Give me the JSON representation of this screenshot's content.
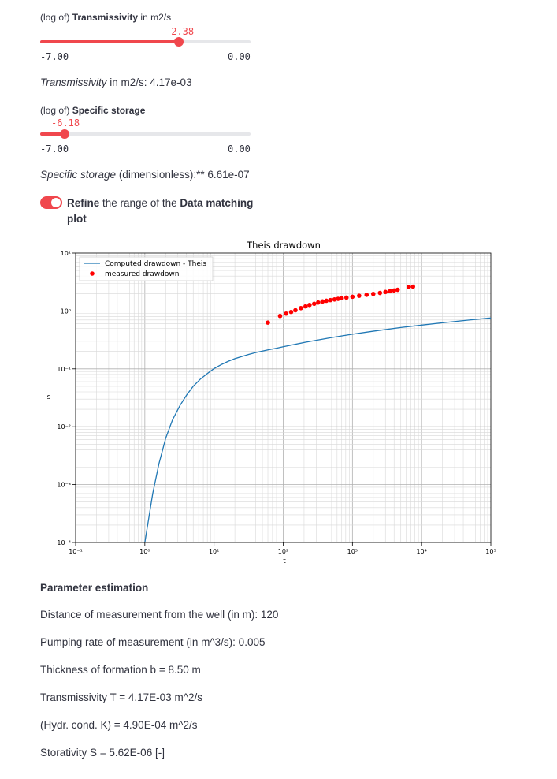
{
  "slider_transmissivity": {
    "label_prefix": "(log of) ",
    "label_bold": "Transmissivity",
    "label_suffix": " in m2/s",
    "value": "-2.38",
    "value_num": -2.38,
    "min": "-7.00",
    "max": "0.00",
    "min_num": -7.0,
    "max_num": 0.0
  },
  "transmissivity_text": {
    "italic": "Transmissivity",
    "rest": " in m2/s: 4.17e-03"
  },
  "slider_storage": {
    "label_prefix": "(log of) ",
    "label_bold": "Specific storage",
    "value": "-6.18",
    "value_num": -6.18,
    "min": "-7.00",
    "max": "0.00",
    "min_num": -7.0,
    "max_num": 0.0
  },
  "storage_text": {
    "italic": "Specific storage",
    "rest": " (dimensionless):** 6.61e-07"
  },
  "toggle": {
    "bold1": "Refine",
    "mid": " the range of the ",
    "bold2": "Data matching",
    "line2": "plot",
    "checked": true
  },
  "chart_data": {
    "type": "line",
    "title": "Theis drawdown",
    "xlabel": "t",
    "ylabel": "s",
    "xscale": "log",
    "yscale": "log",
    "xlim": [
      0.1,
      100000
    ],
    "ylim": [
      0.0001,
      10
    ],
    "grid": true,
    "legend_position": "top-left",
    "xticks": [
      "10⁻¹",
      "10⁰",
      "10¹",
      "10²",
      "10³",
      "10⁴",
      "10⁵"
    ],
    "yticks": [
      "10⁻⁴",
      "10⁻³",
      "10⁻²",
      "10⁻¹",
      "10⁰",
      "10¹"
    ],
    "series": [
      {
        "name": "Computed drawdown - Theis",
        "color": "#1f77b4",
        "style": "line",
        "x": [
          1.0,
          1.3,
          1.6,
          2.0,
          2.5,
          3.2,
          4.0,
          5.0,
          6.3,
          8.0,
          10,
          13,
          16,
          20,
          25,
          32,
          40,
          50,
          63,
          80,
          100,
          200,
          500,
          1000,
          2000,
          5000,
          10000,
          20000,
          50000,
          100000
        ],
        "y": [
          0.0001,
          0.0007,
          0.0023,
          0.0063,
          0.013,
          0.023,
          0.035,
          0.05,
          0.066,
          0.083,
          0.101,
          0.12,
          0.135,
          0.15,
          0.163,
          0.178,
          0.191,
          0.203,
          0.215,
          0.227,
          0.241,
          0.285,
          0.347,
          0.397,
          0.447,
          0.518,
          0.57,
          0.625,
          0.7,
          0.756
        ]
      },
      {
        "name": "measured drawdown",
        "color": "#ff0000",
        "style": "scatter",
        "x": [
          60,
          90,
          110,
          130,
          150,
          180,
          210,
          240,
          280,
          320,
          370,
          420,
          480,
          550,
          620,
          700,
          820,
          1000,
          1250,
          1600,
          2000,
          2500,
          3000,
          3500,
          4000,
          4500,
          6500,
          7500
        ],
        "y": [
          0.63,
          0.82,
          0.9,
          0.96,
          1.03,
          1.12,
          1.2,
          1.27,
          1.33,
          1.4,
          1.46,
          1.5,
          1.54,
          1.58,
          1.62,
          1.66,
          1.7,
          1.76,
          1.83,
          1.9,
          1.97,
          2.05,
          2.13,
          2.2,
          2.26,
          2.32,
          2.6,
          2.63
        ]
      }
    ]
  },
  "parameter_estimation": {
    "heading": "Parameter estimation",
    "lines": [
      "Distance of measurement from the well (in m): 120",
      "Pumping rate of measurement (in m^3/s): 0.005",
      "Thickness of formation b = 8.50 m",
      "Transmissivity T = 4.17E-03 m^2/s",
      "(Hydr. cond. K) = 4.90E-04 m^2/s",
      "Storativity S = 5.62E-06 [-]"
    ]
  }
}
